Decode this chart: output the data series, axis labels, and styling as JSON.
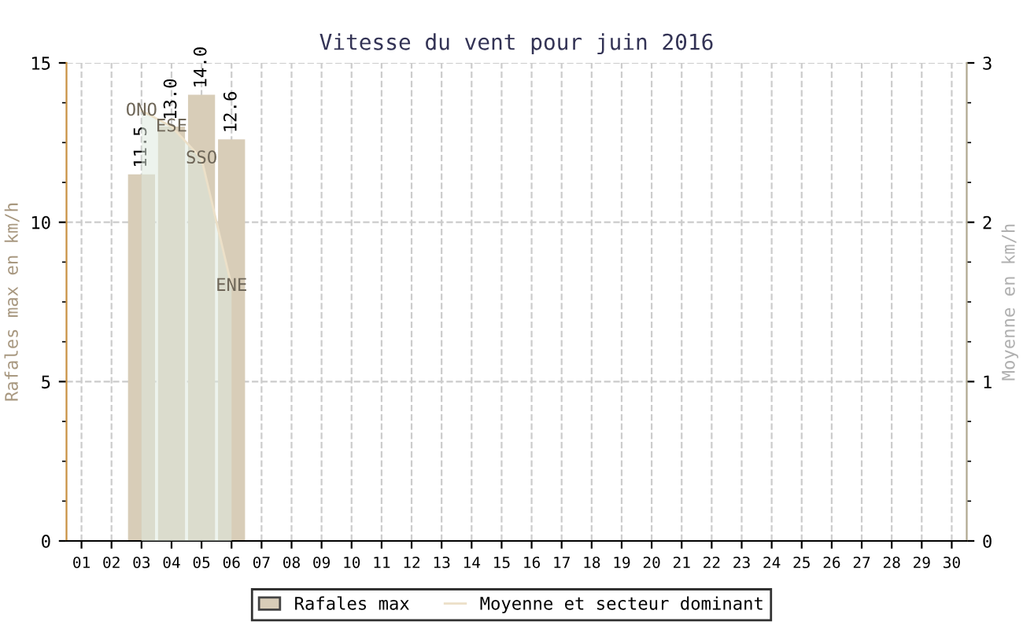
{
  "chart_data": {
    "type": "bar",
    "title": "Vitesse du vent pour juin 2016",
    "ylabel": "Rafales max en km/h",
    "y2label": "Moyenne en km/h",
    "categories": [
      "01",
      "02",
      "03",
      "04",
      "05",
      "06",
      "07",
      "08",
      "09",
      "10",
      "11",
      "12",
      "13",
      "14",
      "15",
      "16",
      "17",
      "18",
      "19",
      "20",
      "21",
      "22",
      "23",
      "24",
      "25",
      "26",
      "27",
      "28",
      "29",
      "30"
    ],
    "series": [
      {
        "name": "Rafales max",
        "color": "#d8cdb8",
        "values": [
          null,
          null,
          11.5,
          13.0,
          14.0,
          12.6,
          null,
          null,
          null,
          null,
          null,
          null,
          null,
          null,
          null,
          null,
          null,
          null,
          null,
          null,
          null,
          null,
          null,
          null,
          null,
          null,
          null,
          null,
          null,
          null
        ],
        "value_labels": [
          null,
          null,
          "11.5",
          "13.0",
          "14.0",
          "12.6",
          null,
          null,
          null,
          null,
          null,
          null,
          null,
          null,
          null,
          null,
          null,
          null,
          null,
          null,
          null,
          null,
          null,
          null,
          null,
          null,
          null,
          null,
          null,
          null
        ]
      },
      {
        "name": "Moyenne et secteur dominant",
        "type": "area",
        "axis": "y2",
        "color": "#ece0c8",
        "values": [
          null,
          null,
          2.7,
          2.6,
          2.4,
          1.6,
          null,
          null,
          null,
          null,
          null,
          null,
          null,
          null,
          null,
          null,
          null,
          null,
          null,
          null,
          null,
          null,
          null,
          null,
          null,
          null,
          null,
          null,
          null,
          null
        ]
      }
    ],
    "annotations": [
      "ONO",
      "ESE",
      "SSO",
      "ENE"
    ],
    "ylim": [
      0,
      15
    ],
    "yticks": [
      0,
      5,
      10,
      15
    ],
    "y2lim": [
      0,
      3
    ],
    "y2ticks": [
      0,
      1,
      2,
      3
    ],
    "grid": true,
    "legend": "bottom"
  }
}
